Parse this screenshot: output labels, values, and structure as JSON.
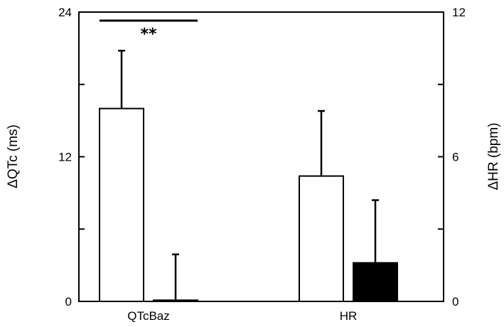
{
  "chart_data": {
    "type": "bar",
    "title": "",
    "categories": [
      "QTcBaz",
      "HR"
    ],
    "y_left": {
      "label": "ΔQTc (ms)",
      "ylim": [
        0,
        24
      ],
      "ticks": [
        "0",
        "12",
        "24"
      ]
    },
    "y_right": {
      "label": "ΔHR (bpm)",
      "ylim": [
        0,
        12
      ],
      "ticks": [
        "0",
        "6",
        "12"
      ]
    },
    "grid": false,
    "legend": "none",
    "colors": {
      "open_bar": "#ffffff",
      "filled_bar": "#000000",
      "stroke": "#000000"
    },
    "bars": [
      {
        "category": "QTcBaz",
        "fill": "open",
        "axis": "left",
        "value": 16.0,
        "error": 4.8
      },
      {
        "category": "QTcBaz",
        "fill": "filled",
        "axis": "left",
        "value": 0.1,
        "error": 3.8
      },
      {
        "category": "HR",
        "fill": "open",
        "axis": "right",
        "value": 5.2,
        "error": 2.7
      },
      {
        "category": "HR",
        "fill": "filled",
        "axis": "right",
        "value": 1.6,
        "error": 2.6
      }
    ],
    "annotations": [
      {
        "text": "**",
        "category": "QTcBaz"
      }
    ]
  }
}
